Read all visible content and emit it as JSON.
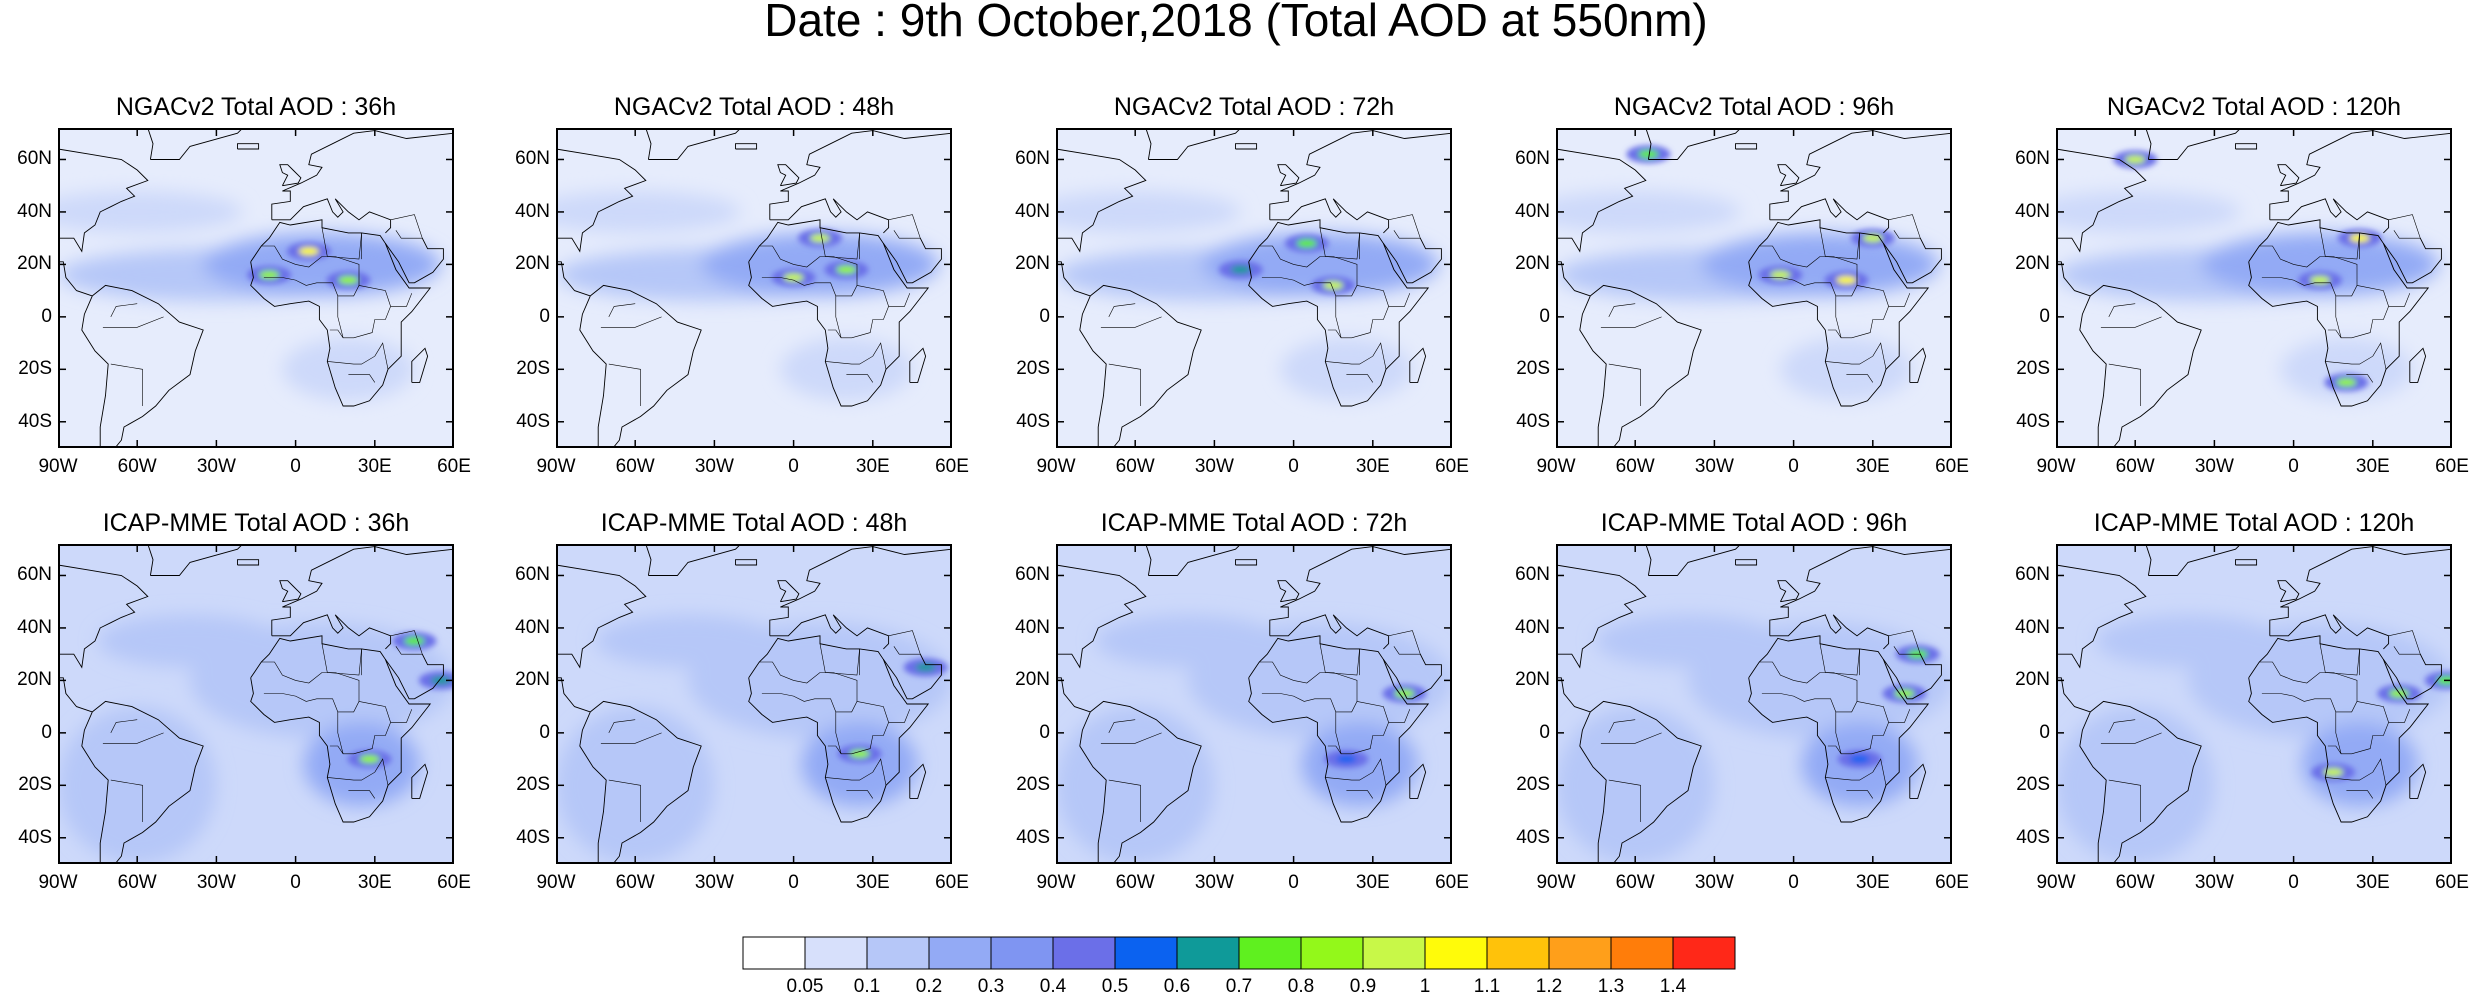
{
  "figure": {
    "title": "Date : 9th October,2018 (Total AOD at 550nm)"
  },
  "rows": [
    {
      "panels": [
        {
          "title": "NGACv2 Total AOD : 36h",
          "hotspots": [
            {
              "lon": 5,
              "lat": 25,
              "v": 1.0
            },
            {
              "lon": -10,
              "lat": 16,
              "v": 0.8
            },
            {
              "lon": 20,
              "lat": 14,
              "v": 0.8
            }
          ]
        },
        {
          "title": "NGACv2 Total AOD : 48h",
          "hotspots": [
            {
              "lon": 10,
              "lat": 30,
              "v": 0.9
            },
            {
              "lon": 0,
              "lat": 15,
              "v": 0.9
            },
            {
              "lon": 20,
              "lat": 18,
              "v": 0.8
            }
          ]
        },
        {
          "title": "NGACv2 Total AOD : 72h",
          "hotspots": [
            {
              "lon": 5,
              "lat": 28,
              "v": 0.7
            },
            {
              "lon": 15,
              "lat": 12,
              "v": 0.9
            },
            {
              "lon": -20,
              "lat": 18,
              "v": 0.6
            }
          ]
        },
        {
          "title": "NGACv2 Total AOD : 96h",
          "hotspots": [
            {
              "lon": 30,
              "lat": 30,
              "v": 0.9
            },
            {
              "lon": 20,
              "lat": 14,
              "v": 1.0
            },
            {
              "lon": -5,
              "lat": 16,
              "v": 0.9
            },
            {
              "lon": -55,
              "lat": 62,
              "v": 0.7
            }
          ]
        },
        {
          "title": "NGACv2 Total AOD : 120h",
          "hotspots": [
            {
              "lon": 25,
              "lat": 30,
              "v": 1.0
            },
            {
              "lon": 10,
              "lat": 14,
              "v": 0.9
            },
            {
              "lon": -60,
              "lat": 60,
              "v": 0.9
            },
            {
              "lon": 20,
              "lat": -25,
              "v": 0.8
            }
          ]
        }
      ]
    },
    {
      "panels": [
        {
          "title": "ICAP-MME Total AOD : 36h",
          "hotspots": [
            {
              "lon": 45,
              "lat": 35,
              "v": 0.7
            },
            {
              "lon": 28,
              "lat": -10,
              "v": 0.8
            },
            {
              "lon": 55,
              "lat": 20,
              "v": 0.6
            }
          ]
        },
        {
          "title": "ICAP-MME Total AOD : 48h",
          "hotspots": [
            {
              "lon": 25,
              "lat": -8,
              "v": 0.8
            },
            {
              "lon": 50,
              "lat": 25,
              "v": 0.6
            }
          ]
        },
        {
          "title": "ICAP-MME Total AOD : 72h",
          "hotspots": [
            {
              "lon": 42,
              "lat": 15,
              "v": 0.8
            },
            {
              "lon": 20,
              "lat": -10,
              "v": 0.5
            }
          ]
        },
        {
          "title": "ICAP-MME Total AOD : 96h",
          "hotspots": [
            {
              "lon": 42,
              "lat": 15,
              "v": 0.8
            },
            {
              "lon": 47,
              "lat": 30,
              "v": 0.7
            },
            {
              "lon": 25,
              "lat": -10,
              "v": 0.5
            }
          ]
        },
        {
          "title": "ICAP-MME Total AOD : 120h",
          "hotspots": [
            {
              "lon": 40,
              "lat": 15,
              "v": 0.8
            },
            {
              "lon": 15,
              "lat": -15,
              "v": 0.9
            },
            {
              "lon": 58,
              "lat": 20,
              "v": 0.7
            }
          ]
        }
      ]
    }
  ],
  "axes": {
    "lon_range": [
      -90,
      60
    ],
    "lat_range": [
      -50,
      72
    ],
    "lon_ticks": [
      "90W",
      "60W",
      "30W",
      "0",
      "30E",
      "60E"
    ],
    "lat_ticks": [
      "60N",
      "40N",
      "20N",
      "0",
      "20S",
      "40S"
    ]
  },
  "colorbar": {
    "levels": [
      "0.05",
      "0.1",
      "0.2",
      "0.3",
      "0.4",
      "0.5",
      "0.6",
      "0.7",
      "0.8",
      "0.9",
      "1",
      "1.1",
      "1.2",
      "1.3",
      "1.4"
    ],
    "colors": [
      "#ffffff",
      "#d7e0fb",
      "#b6c7f8",
      "#93aaf5",
      "#7f95f2",
      "#6b6fe8",
      "#0b62f0",
      "#0f9a99",
      "#5ff01f",
      "#93f81a",
      "#c8f848",
      "#fffb0a",
      "#ffc20a",
      "#ff9f1a",
      "#ff7d0a",
      "#ff2818"
    ]
  }
}
